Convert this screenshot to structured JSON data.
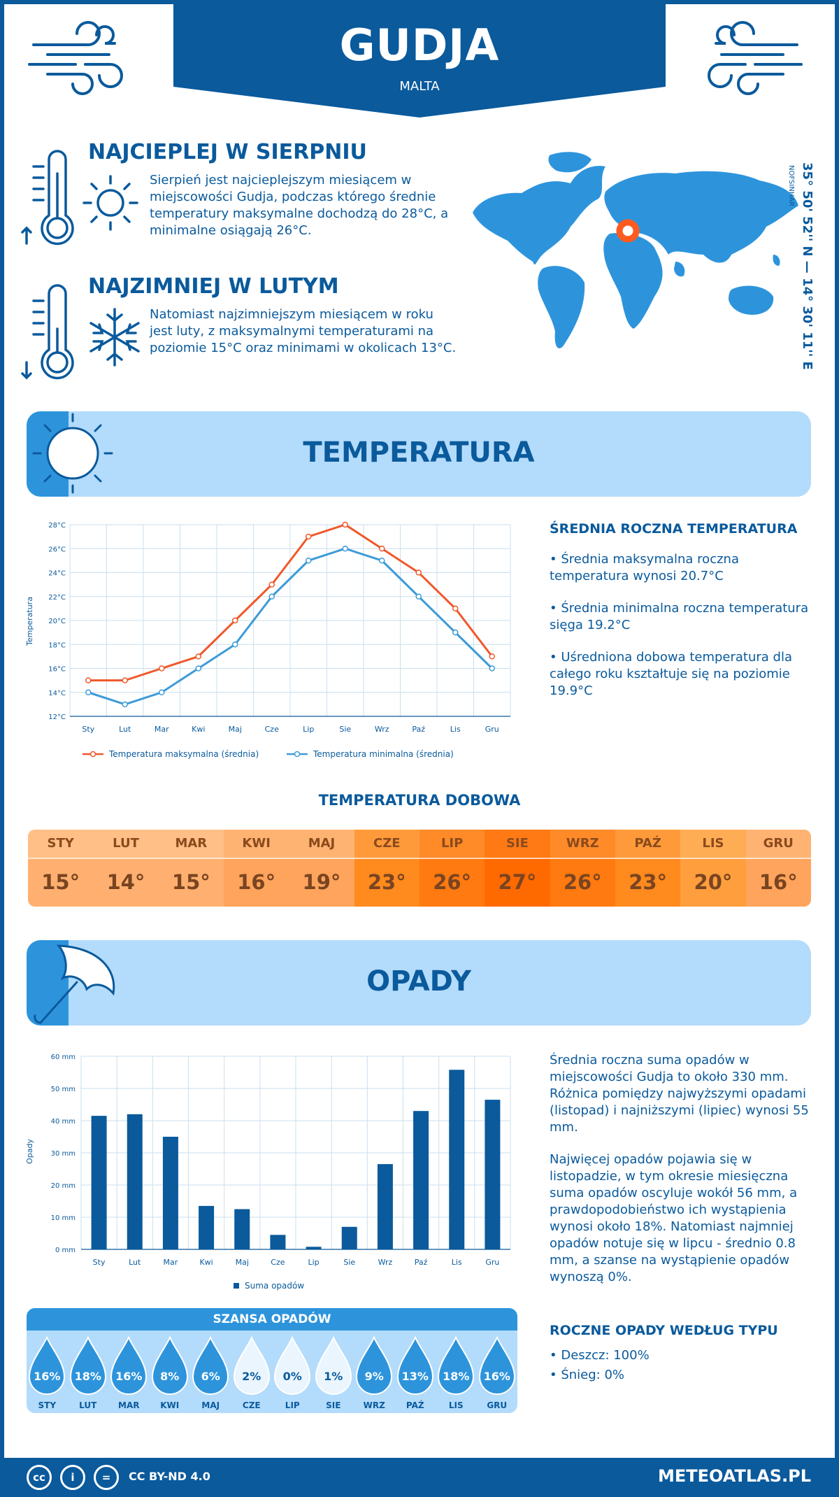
{
  "header": {
    "city": "GUDJA",
    "country": "MALTA"
  },
  "warmest": {
    "title": "NAJCIEPLEJ W SIERPNIU",
    "text": "Sierpień jest najcieplejszym miesiącem w miejscowości Gudja, podczas którego średnie temperatury maksymalne dochodzą do 28°C, a minimalne osiągają 26°C."
  },
  "coldest": {
    "title": "NAJZIMNIEJ W LUTYM",
    "text": "Natomiast najzimniejszym miesiącem w roku jest luty, z maksymalnymi temperaturami na poziomie 15°C oraz minimami w okolicach 13°C."
  },
  "coordinates": {
    "text": "35° 50' 52'' N — 14° 30' 11'' E",
    "region": "NOFSINHAR"
  },
  "temperature_section": {
    "title": "TEMPERATURA",
    "side_title": "ŚREDNIA ROCZNA TEMPERATURA",
    "points": [
      "• Średnia maksymalna roczna temperatura wynosi 20.7°C",
      "• Średnia minimalna roczna temperatura sięga 19.2°C",
      "• Uśredniona dobowa temperatura dla całego roku kształtuje się na poziomie 19.9°C"
    ]
  },
  "daily": {
    "title": "TEMPERATURA DOBOWA",
    "months": [
      "STY",
      "LUT",
      "MAR",
      "KWI",
      "MAJ",
      "CZE",
      "LIP",
      "SIE",
      "WRZ",
      "PAŹ",
      "LIS",
      "GRU"
    ],
    "temps": [
      "15°",
      "14°",
      "15°",
      "16°",
      "19°",
      "23°",
      "26°",
      "27°",
      "26°",
      "23°",
      "20°",
      "16°"
    ],
    "colors": [
      "#ffb070",
      "#ffb070",
      "#ffb070",
      "#ffa45c",
      "#ffa45c",
      "#ff8a1e",
      "#ff7a10",
      "#ff6a00",
      "#ff7a10",
      "#ff8a1e",
      "#ff9e3d",
      "#ffa45c"
    ],
    "head_colors": [
      "#ffbf86",
      "#ffbf86",
      "#ffbf86",
      "#ffb373",
      "#ffb373",
      "#ff9a3a",
      "#ff8a28",
      "#ff7a14",
      "#ff8a28",
      "#ff9a3a",
      "#ffad54",
      "#ffb373"
    ]
  },
  "precip_section": {
    "title": "OPADY",
    "text1": "Średnia roczna suma opadów w miejscowości Gudja to około 330 mm. Różnica pomiędzy najwyższymi opadami (listopad) i najniższymi (lipiec) wynosi 55 mm.",
    "text2": "Najwięcej opadów pojawia się w listopadzie, w tym okresie miesięczna suma opadów oscyluje wokół 56 mm, a prawdopodobieństwo ich wystąpienia wynosi około 18%. Natomiast najmniej opadów notuje się w lipcu - średnio 0.8 mm, a szanse na wystąpienie opadów wynoszą 0%.",
    "type_title": "ROCZNE OPADY WEDŁUG TYPU",
    "types": [
      "• Deszcz: 100%",
      "• Śnieg: 0%"
    ]
  },
  "chance": {
    "title": "SZANSA OPADÓW",
    "months": [
      "STY",
      "LUT",
      "MAR",
      "KWI",
      "MAJ",
      "CZE",
      "LIP",
      "SIE",
      "WRZ",
      "PAŹ",
      "LIS",
      "GRU"
    ],
    "values": [
      "16%",
      "18%",
      "16%",
      "8%",
      "6%",
      "2%",
      "0%",
      "1%",
      "9%",
      "13%",
      "18%",
      "16%"
    ],
    "levels": [
      16,
      18,
      16,
      8,
      6,
      2,
      0,
      1,
      9,
      13,
      18,
      16
    ]
  },
  "footer": {
    "license": "CC BY-ND 4.0",
    "site": "METEOATLAS.PL"
  },
  "chart_data": [
    {
      "type": "line",
      "categories": [
        "Sty",
        "Lut",
        "Mar",
        "Kwi",
        "Maj",
        "Cze",
        "Lip",
        "Sie",
        "Wrz",
        "Paź",
        "Lis",
        "Gru"
      ],
      "series": [
        {
          "name": "Temperatura maksymalna (średnia)",
          "values": [
            15,
            15,
            16,
            17,
            20,
            23,
            27,
            28,
            26,
            24,
            21,
            17
          ],
          "color": "#f0582a"
        },
        {
          "name": "Temperatura minimalna (średnia)",
          "values": [
            14,
            13,
            14,
            16,
            18,
            22,
            25,
            26,
            25,
            22,
            19,
            16
          ],
          "color": "#3d9bd8"
        }
      ],
      "ylabel": "Temperatura",
      "ylim": [
        12,
        28
      ],
      "yticks": [
        "12°C",
        "14°C",
        "16°C",
        "18°C",
        "20°C",
        "22°C",
        "24°C",
        "26°C",
        "28°C"
      ],
      "grid": true,
      "legend": "bottom"
    },
    {
      "type": "bar",
      "categories": [
        "Sty",
        "Lut",
        "Mar",
        "Kwi",
        "Maj",
        "Cze",
        "Lip",
        "Sie",
        "Wrz",
        "Paź",
        "Lis",
        "Gru"
      ],
      "series": [
        {
          "name": "Suma opadów",
          "values": [
            41.5,
            42,
            35,
            13.5,
            12.5,
            4.5,
            0.8,
            7,
            26.5,
            43,
            55.8,
            46.5
          ],
          "color": "#0a5a9c"
        }
      ],
      "ylabel": "Opady",
      "ylim": [
        0,
        60
      ],
      "yticks": [
        "0 mm",
        "10 mm",
        "20 mm",
        "30 mm",
        "40 mm",
        "50 mm",
        "60 mm"
      ],
      "grid": true,
      "legend": "bottom"
    }
  ]
}
